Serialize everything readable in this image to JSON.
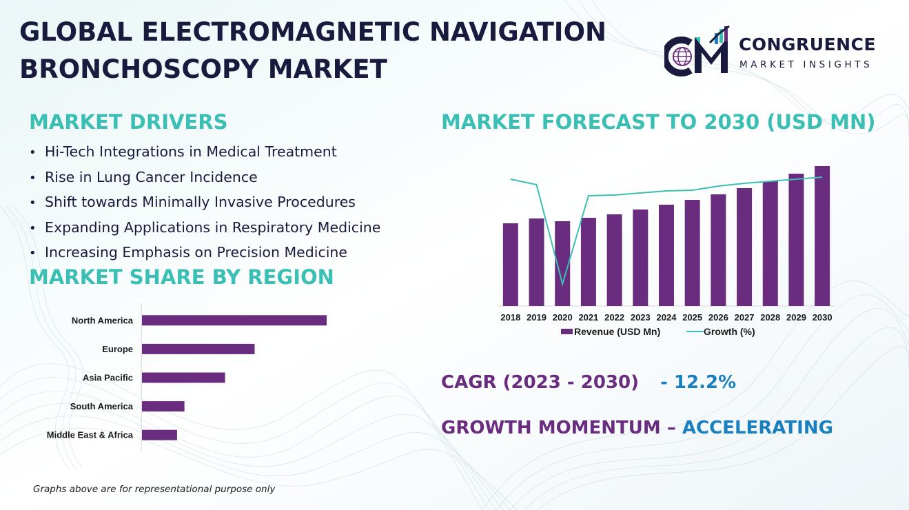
{
  "title": {
    "line1": "GLOBAL ELECTROMAGNETIC NAVIGATION",
    "line2": "BRONCHOSCOPY MARKET"
  },
  "logo": {
    "name": "CONGRUENCE",
    "subtitle": "MARKET INSIGHTS"
  },
  "drivers": {
    "heading": "MARKET DRIVERS",
    "items": [
      "Hi-Tech Integrations in Medical Treatment",
      "Rise in Lung Cancer Incidence",
      "Shift towards Minimally Invasive Procedures",
      "Expanding Applications in Respiratory Medicine",
      "Increasing Emphasis on Precision Medicine"
    ]
  },
  "region": {
    "heading": "MARKET SHARE BY REGION"
  },
  "forecast": {
    "heading": "MARKET FORECAST TO 2030 (USD MN)"
  },
  "stats": {
    "cagr_label": "CAGR (2023 - 2030)",
    "cagr_value": "- 12.2%",
    "momentum_label": "GROWTH MOMENTUM –",
    "momentum_value": "ACCELERATING"
  },
  "footnote": "Graphs above are for representational purpose only",
  "colors": {
    "bar": "#6a2c7e",
    "line": "#3bbfb4",
    "heading": "#3bbfb4",
    "title": "#1a1a3e",
    "accent_blue": "#1a7fc1"
  },
  "chart_data": [
    {
      "type": "bar",
      "orientation": "horizontal",
      "categories": [
        "North America",
        "Europe",
        "Asia Pacific",
        "South America",
        "Middle East & Africa"
      ],
      "values": [
        100,
        61,
        45,
        23,
        19
      ],
      "xlim": [
        0,
        100
      ],
      "grid": false,
      "legend": "none"
    },
    {
      "type": "bar",
      "categories": [
        "2018",
        "2019",
        "2020",
        "2021",
        "2022",
        "2023",
        "2024",
        "2025",
        "2026",
        "2027",
        "2028",
        "2029",
        "2030"
      ],
      "series": [
        {
          "name": "Revenue (USD Mn)",
          "type": "bar",
          "values": [
            60,
            63.5,
            61.5,
            64,
            66.5,
            70,
            73.5,
            77,
            81,
            85.5,
            90.5,
            96,
            101.5
          ]
        },
        {
          "name": "Growth (%)",
          "type": "line",
          "values": [
            92,
            88,
            16,
            80,
            80.5,
            82,
            83.5,
            84,
            87,
            89,
            90.5,
            92,
            93.5
          ]
        }
      ],
      "ylim": [
        0,
        106
      ],
      "grid": false,
      "legend": "bottom"
    }
  ]
}
